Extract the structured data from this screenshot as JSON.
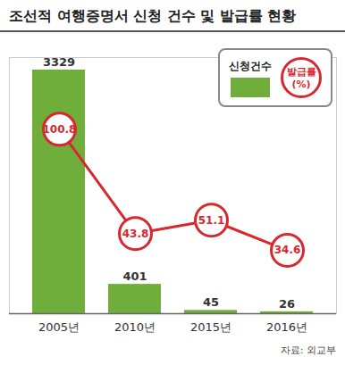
{
  "chart_data": {
    "type": "bar",
    "title": "조선적 여행증명서 신청 건수 및 발급률 현황",
    "source": "자료: 외교부",
    "categories": [
      "2005년",
      "2010년",
      "2015년",
      "2016년"
    ],
    "series": [
      {
        "name": "신청건수",
        "type": "bar",
        "color": "#6fae3a",
        "values": [
          3329,
          401,
          45,
          26
        ]
      },
      {
        "name": "발급률 (%)",
        "type": "line",
        "axis": "y2",
        "color": "#d7282f",
        "marker": "circle",
        "values": [
          100.8,
          43.8,
          51.1,
          34.6
        ]
      }
    ],
    "ylim": [
      0,
      3500
    ],
    "y2lim": [
      0,
      140
    ],
    "tick_labels": "x",
    "data_labels": true,
    "legend": "upper right"
  }
}
